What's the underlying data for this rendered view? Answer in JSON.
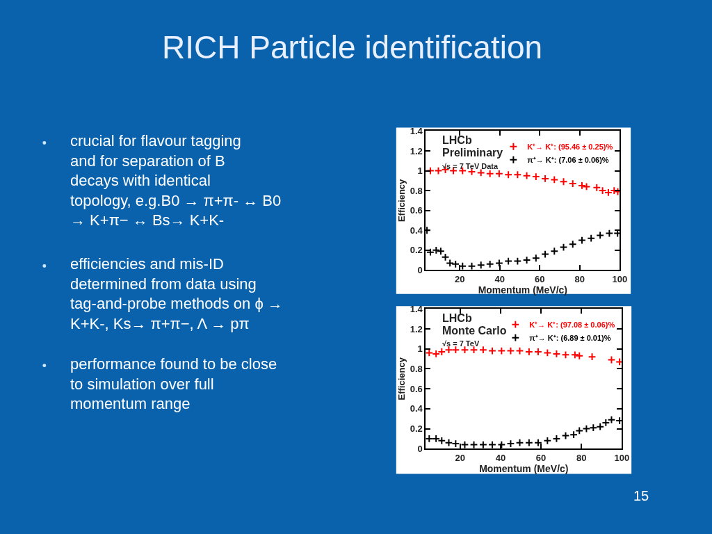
{
  "chart_data": [
    {
      "type": "other",
      "title": "RICH Particle identification",
      "annotations": [
        "crucial for flavour tagging and for separation of B decays with identical topology, e.g.B0 → π+π- ↔ B0 → K+π− ↔ Bs→ K+K-",
        "efficiencies and mis-ID determined from data using tag-and-probe methods on ϕ → K+K-, Ks→ π+π−, Λ → pπ",
        "performance found to be close to simulation over full momentum range",
        "15"
      ]
    },
    {
      "type": "scatter",
      "xlabel": "Momentum (MeV/c)",
      "ylabel": "Efficiency",
      "xlim": [
        3,
        100
      ],
      "xticks": [
        20,
        40,
        60,
        80,
        100
      ],
      "ylim": [
        0,
        1.4
      ],
      "yticks": [
        0,
        0.2,
        0.4,
        0.6,
        0.8,
        1,
        1.2,
        1.4
      ],
      "marker": "cross",
      "legend": "top right",
      "annotations": [
        "LHCb",
        "Preliminary",
        "√s = 7 TeV Data"
      ],
      "series": [
        {
          "name": "K⁺→ K⁺: (95.46 ± 0.25)%",
          "color": "#ff0000",
          "x": [
            5.3,
            9.3,
            12.8,
            16.8,
            21.4,
            26.0,
            30.6,
            35.1,
            39.7,
            44.3,
            48.9,
            53.5,
            58.1,
            62.7,
            67.3,
            71.9,
            76.5,
            81.1,
            83.4,
            88.5,
            91.4,
            94.3,
            97.2,
            99
          ],
          "values": [
            1.0,
            1.0,
            1.01,
            1.0,
            1.0,
            0.99,
            0.98,
            0.97,
            0.97,
            0.96,
            0.96,
            0.95,
            0.94,
            0.92,
            0.91,
            0.89,
            0.87,
            0.85,
            0.84,
            0.83,
            0.8,
            0.78,
            0.8,
            0.79
          ]
        },
        {
          "name": "π⁺→ K⁺: (7.06 ± 0.06)%",
          "color": "#000000",
          "x": [
            3.6,
            5.3,
            8.2,
            10.5,
            12.8,
            15.1,
            17.9,
            21.4,
            26.0,
            30.6,
            35.1,
            39.7,
            44.3,
            48.9,
            53.5,
            58.1,
            62.7,
            67.3,
            71.9,
            76.5,
            81.1,
            85.7,
            90.2,
            94.8,
            98.9
          ],
          "values": [
            0.4,
            0.18,
            0.2,
            0.19,
            0.13,
            0.07,
            0.06,
            0.04,
            0.04,
            0.05,
            0.06,
            0.07,
            0.09,
            0.09,
            0.1,
            0.12,
            0.16,
            0.19,
            0.23,
            0.26,
            0.3,
            0.32,
            0.35,
            0.37,
            0.37
          ]
        }
      ]
    },
    {
      "type": "scatter",
      "xlabel": "Momentum (MeV/c)",
      "ylabel": "Efficiency",
      "xlim": [
        3,
        100
      ],
      "xticks": [
        20,
        40,
        60,
        80,
        100
      ],
      "ylim": [
        0,
        1.4
      ],
      "yticks": [
        0,
        0.2,
        0.4,
        0.6,
        0.8,
        1,
        1.2,
        1.4
      ],
      "marker": "cross",
      "legend": "top right",
      "annotations": [
        "LHCb",
        "Monte Carlo",
        "√s = 7 TeV"
      ],
      "series": [
        {
          "name": "K⁺→ K⁺: (97.08 ± 0.06)%",
          "color": "#ff0000",
          "x": [
            4.7,
            8.1,
            10.9,
            14.4,
            17.8,
            22.3,
            26.8,
            31.4,
            35.9,
            40.5,
            45.0,
            49.5,
            54.1,
            58.6,
            63.2,
            67.7,
            72.2,
            76.8,
            79.0,
            85.3,
            94.9,
            98.9
          ],
          "values": [
            0.96,
            0.95,
            0.97,
            0.99,
            0.99,
            0.99,
            0.99,
            0.99,
            0.98,
            0.98,
            0.98,
            0.98,
            0.97,
            0.97,
            0.96,
            0.95,
            0.94,
            0.94,
            0.93,
            0.92,
            0.89,
            0.87
          ]
        },
        {
          "name": "π⁺→ K⁺: (6.89 ± 0.01)%",
          "color": "#000000",
          "x": [
            4.7,
            8.1,
            10.9,
            14.4,
            17.8,
            22.3,
            26.8,
            31.4,
            35.9,
            40.5,
            45.0,
            49.5,
            54.1,
            58.6,
            63.2,
            67.7,
            72.2,
            76.2,
            79.0,
            82.5,
            85.9,
            89.3,
            92.1,
            94.9,
            98.9
          ],
          "values": [
            0.1,
            0.1,
            0.08,
            0.06,
            0.05,
            0.04,
            0.04,
            0.04,
            0.04,
            0.04,
            0.05,
            0.06,
            0.06,
            0.06,
            0.08,
            0.1,
            0.13,
            0.14,
            0.18,
            0.2,
            0.21,
            0.22,
            0.26,
            0.29,
            0.28
          ]
        }
      ]
    }
  ]
}
